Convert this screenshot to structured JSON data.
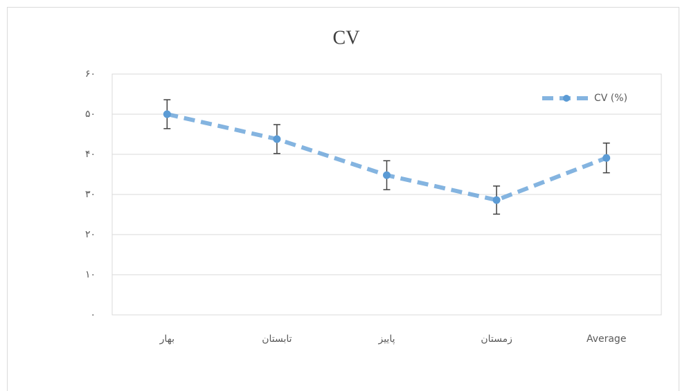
{
  "chart_data": {
    "type": "line",
    "title": "CV",
    "categories": [
      "بهار",
      "تابستان",
      "پاییز",
      "زمستان",
      "Average"
    ],
    "series": [
      {
        "name": "CV (%)",
        "color": "#5b9bd5",
        "values": [
          50.0,
          43.8,
          34.8,
          28.6,
          39.1
        ],
        "errors": [
          3.6,
          3.6,
          3.6,
          3.5,
          3.7
        ]
      }
    ],
    "ylim": [
      0,
      60
    ],
    "yticks": [
      {
        "value": 0,
        "label": "۰"
      },
      {
        "value": 10,
        "label": "۱۰"
      },
      {
        "value": 20,
        "label": "۲۰"
      },
      {
        "value": 30,
        "label": "۳۰"
      },
      {
        "value": 40,
        "label": "۴۰"
      },
      {
        "value": 50,
        "label": "۵۰"
      },
      {
        "value": 60,
        "label": "۶۰"
      }
    ],
    "grid": true,
    "legend": "top-right"
  }
}
